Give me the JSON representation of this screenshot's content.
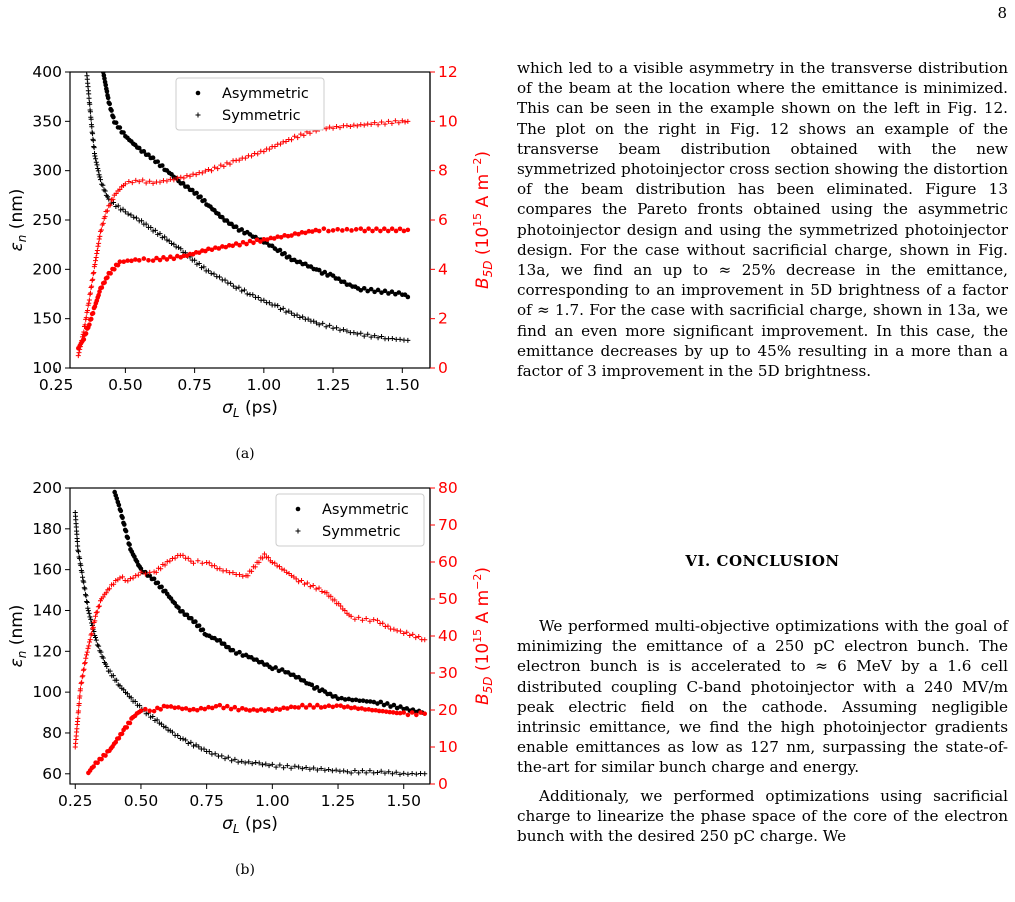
{
  "page_number": "8",
  "figures": [
    {
      "caption": "(a)",
      "xlabel": "σ_L (ps)",
      "ylabel_left": "ε_n (nm)",
      "ylabel_right": "B_5D (10^15 A m^-2)",
      "legend": [
        "Asymmetric",
        "Symmetric"
      ]
    },
    {
      "caption": "(b)",
      "xlabel": "σ_L (ps)",
      "ylabel_left": "ε_n (nm)",
      "ylabel_right": "B_5D (10^15 A m^-2)",
      "legend": [
        "Asymmetric",
        "Symmetric"
      ]
    }
  ],
  "chart_data": [
    {
      "type": "scatter",
      "panel": "(a)",
      "xlabel": "σL (ps)",
      "ylabel": "εn (nm)",
      "y2label": "B5D (10^15 A m^-2)",
      "xlim": [
        0.3,
        1.6
      ],
      "ylim": [
        100,
        400
      ],
      "y2lim": [
        0,
        12
      ],
      "xticks": [
        "0.25",
        "0.50",
        "0.75",
        "1.00",
        "1.25",
        "1.50"
      ],
      "yticks": [
        "100",
        "150",
        "200",
        "250",
        "300",
        "350",
        "400"
      ],
      "y2ticks": [
        "0",
        "2",
        "4",
        "6",
        "8",
        "10",
        "12"
      ],
      "colors": {
        "emittance": "#000000",
        "brightness": "#ff0000"
      },
      "legend_position": "top-center",
      "series": [
        {
          "name": "Asymmetric",
          "axis": "left",
          "marker": "dot",
          "color": "#000000",
          "points": [
            [
              0.42,
              400
            ],
            [
              0.44,
              370
            ],
            [
              0.46,
              350
            ],
            [
              0.5,
              335
            ],
            [
              0.55,
              322
            ],
            [
              0.6,
              312
            ],
            [
              0.65,
              300
            ],
            [
              0.7,
              288
            ],
            [
              0.75,
              278
            ],
            [
              0.8,
              265
            ],
            [
              0.85,
              252
            ],
            [
              0.9,
              242
            ],
            [
              0.95,
              235
            ],
            [
              1.0,
              228
            ],
            [
              1.05,
              220
            ],
            [
              1.1,
              210
            ],
            [
              1.15,
              205
            ],
            [
              1.2,
              198
            ],
            [
              1.25,
              193
            ],
            [
              1.3,
              185
            ],
            [
              1.35,
              180
            ],
            [
              1.5,
              175
            ],
            [
              1.52,
              172
            ]
          ]
        },
        {
          "name": "Symmetric",
          "axis": "left",
          "marker": "plus",
          "color": "#000000",
          "points": [
            [
              0.36,
              400
            ],
            [
              0.37,
              370
            ],
            [
              0.38,
              340
            ],
            [
              0.39,
              315
            ],
            [
              0.41,
              290
            ],
            [
              0.44,
              270
            ],
            [
              0.5,
              258
            ],
            [
              0.55,
              250
            ],
            [
              0.6,
              240
            ],
            [
              0.65,
              230
            ],
            [
              0.7,
              220
            ],
            [
              0.75,
              208
            ],
            [
              0.8,
              198
            ],
            [
              0.85,
              190
            ],
            [
              0.9,
              182
            ],
            [
              0.95,
              175
            ],
            [
              1.0,
              168
            ],
            [
              1.05,
              162
            ],
            [
              1.1,
              155
            ],
            [
              1.15,
              150
            ],
            [
              1.2,
              145
            ],
            [
              1.25,
              141
            ],
            [
              1.3,
              137
            ],
            [
              1.35,
              134
            ],
            [
              1.4,
              132
            ],
            [
              1.45,
              130
            ],
            [
              1.52,
              128
            ]
          ]
        },
        {
          "name": "Asymmetric",
          "axis": "right",
          "marker": "dot",
          "color": "#ff0000",
          "points": [
            [
              0.33,
              0.8
            ],
            [
              0.35,
              1.2
            ],
            [
              0.37,
              1.8
            ],
            [
              0.39,
              2.5
            ],
            [
              0.41,
              3.2
            ],
            [
              0.44,
              3.8
            ],
            [
              0.48,
              4.3
            ],
            [
              0.55,
              4.4
            ],
            [
              0.6,
              4.4
            ],
            [
              0.7,
              4.5
            ],
            [
              0.8,
              4.8
            ],
            [
              0.9,
              5.0
            ],
            [
              1.0,
              5.2
            ],
            [
              1.1,
              5.4
            ],
            [
              1.2,
              5.6
            ],
            [
              1.25,
              5.6
            ],
            [
              1.3,
              5.6
            ],
            [
              1.35,
              5.6
            ],
            [
              1.52,
              5.6
            ]
          ]
        },
        {
          "name": "Symmetric",
          "axis": "right",
          "marker": "plus",
          "color": "#ff0000",
          "points": [
            [
              0.33,
              0.5
            ],
            [
              0.35,
              1.5
            ],
            [
              0.37,
              2.8
            ],
            [
              0.39,
              4.2
            ],
            [
              0.41,
              5.5
            ],
            [
              0.43,
              6.3
            ],
            [
              0.46,
              7.0
            ],
            [
              0.5,
              7.5
            ],
            [
              0.55,
              7.6
            ],
            [
              0.6,
              7.5
            ],
            [
              0.7,
              7.7
            ],
            [
              0.8,
              8.0
            ],
            [
              0.9,
              8.4
            ],
            [
              1.0,
              8.8
            ],
            [
              1.1,
              9.3
            ],
            [
              1.2,
              9.7
            ],
            [
              1.3,
              9.8
            ],
            [
              1.4,
              9.9
            ],
            [
              1.5,
              10.0
            ],
            [
              1.52,
              10.0
            ]
          ]
        }
      ]
    },
    {
      "type": "scatter",
      "panel": "(b)",
      "xlabel": "σL (ps)",
      "ylabel": "εn (nm)",
      "y2label": "B5D (10^15 A m^-2)",
      "xlim": [
        0.23,
        1.6
      ],
      "ylim": [
        55,
        200
      ],
      "y2lim": [
        0,
        80
      ],
      "xticks": [
        "0.25",
        "0.50",
        "0.75",
        "1.00",
        "1.25",
        "1.50"
      ],
      "yticks": [
        "60",
        "80",
        "100",
        "120",
        "140",
        "160",
        "180",
        "200"
      ],
      "y2ticks": [
        "0",
        "10",
        "20",
        "30",
        "40",
        "50",
        "60",
        "70",
        "80"
      ],
      "colors": {
        "emittance": "#000000",
        "brightness": "#ff0000"
      },
      "legend_position": "top-right",
      "series": [
        {
          "name": "Asymmetric",
          "axis": "left",
          "marker": "dot",
          "color": "#000000",
          "points": [
            [
              0.4,
              198
            ],
            [
              0.42,
              190
            ],
            [
              0.44,
              180
            ],
            [
              0.46,
              170
            ],
            [
              0.5,
              160
            ],
            [
              0.55,
              155
            ],
            [
              0.6,
              148
            ],
            [
              0.65,
              140
            ],
            [
              0.7,
              135
            ],
            [
              0.75,
              128
            ],
            [
              0.8,
              125
            ],
            [
              0.85,
              120
            ],
            [
              0.9,
              118
            ],
            [
              0.95,
              115
            ],
            [
              1.0,
              112
            ],
            [
              1.05,
              110
            ],
            [
              1.1,
              107
            ],
            [
              1.15,
              103
            ],
            [
              1.2,
              100
            ],
            [
              1.25,
              97
            ],
            [
              1.4,
              95
            ],
            [
              1.5,
              92
            ],
            [
              1.57,
              90
            ]
          ]
        },
        {
          "name": "Symmetric",
          "axis": "left",
          "marker": "plus",
          "color": "#000000",
          "points": [
            [
              0.25,
              188
            ],
            [
              0.26,
              170
            ],
            [
              0.28,
              155
            ],
            [
              0.3,
              140
            ],
            [
              0.33,
              125
            ],
            [
              0.37,
              112
            ],
            [
              0.42,
              103
            ],
            [
              0.47,
              96
            ],
            [
              0.52,
              90
            ],
            [
              0.57,
              85
            ],
            [
              0.62,
              80
            ],
            [
              0.67,
              76
            ],
            [
              0.72,
              73
            ],
            [
              0.77,
              70
            ],
            [
              0.82,
              68
            ],
            [
              0.87,
              66
            ],
            [
              0.95,
              65
            ],
            [
              1.0,
              64
            ],
            [
              1.1,
              63
            ],
            [
              1.2,
              62
            ],
            [
              1.3,
              61
            ],
            [
              1.4,
              61
            ],
            [
              1.5,
              60
            ],
            [
              1.58,
              60
            ]
          ]
        },
        {
          "name": "Asymmetric",
          "axis": "right",
          "marker": "dot",
          "color": "#ff0000",
          "points": [
            [
              0.3,
              3
            ],
            [
              0.32,
              5
            ],
            [
              0.35,
              7
            ],
            [
              0.38,
              9
            ],
            [
              0.41,
              12
            ],
            [
              0.44,
              15
            ],
            [
              0.47,
              18
            ],
            [
              0.5,
              20
            ],
            [
              0.55,
              20
            ],
            [
              0.6,
              21
            ],
            [
              0.7,
              20
            ],
            [
              0.8,
              21
            ],
            [
              0.9,
              20
            ],
            [
              1.0,
              20
            ],
            [
              1.1,
              21
            ],
            [
              1.2,
              21
            ],
            [
              1.26,
              21
            ],
            [
              1.5,
              19
            ],
            [
              1.58,
              19
            ]
          ]
        },
        {
          "name": "Symmetric",
          "axis": "right",
          "marker": "plus",
          "color": "#ff0000",
          "points": [
            [
              0.25,
              10
            ],
            [
              0.26,
              18
            ],
            [
              0.27,
              26
            ],
            [
              0.29,
              34
            ],
            [
              0.31,
              40
            ],
            [
              0.33,
              46
            ],
            [
              0.35,
              50
            ],
            [
              0.38,
              53
            ],
            [
              0.42,
              56
            ],
            [
              0.45,
              55
            ],
            [
              0.5,
              57
            ],
            [
              0.55,
              57
            ],
            [
              0.6,
              60
            ],
            [
              0.65,
              62
            ],
            [
              0.7,
              60
            ],
            [
              0.75,
              60
            ],
            [
              0.8,
              58
            ],
            [
              0.9,
              56
            ],
            [
              0.97,
              62
            ],
            [
              1.0,
              60
            ],
            [
              1.1,
              55
            ],
            [
              1.2,
              52
            ],
            [
              1.26,
              48
            ],
            [
              1.3,
              45
            ],
            [
              1.4,
              44
            ],
            [
              1.45,
              42
            ],
            [
              1.5,
              41
            ],
            [
              1.58,
              39
            ]
          ]
        }
      ]
    }
  ],
  "text": {
    "para1": "which led to a visible asymmetry in the transverse distribution of the beam at the location where the emittance is minimized.  This can be seen in the example shown on the left in Fig. 12. The plot on the right in Fig. 12 shows an example of the transverse beam distribution obtained with the new symmetrized photoinjector cross section showing the distortion of the beam distribution has been eliminated.  Figure 13 compares the Pareto fronts obtained using the asymmetric photoinjector design and using the symmetrized photoinjector design. For the case without sacrificial charge, shown in Fig. 13a, we find an up to ≈ 25% decrease in the emittance, corresponding to an improvement in 5D brightness of a factor of ≈ 1.7. For the case with sacrificial charge, shown in 13a, we find an even more significant improvement. In this case, the emittance decreases by up to 45% resulting in a more than a factor of 3 improvement in the 5D brightness.",
    "heading": "VI.    CONCLUSION",
    "para2": "We performed multi-objective optimizations with the goal of minimizing the emittance of a 250 pC electron bunch. The electron bunch is is accelerated to ≈ 6 MeV by a 1.6 cell distributed coupling C-band photoinjector with a 240 MV/m peak electric field on the cathode. Assuming negligible intrinsic emittance, we find the high photoinjector gradients enable emittances as low as 127 nm, surpassing the state-of-the-art for similar bunch charge and energy.",
    "para3": "Additionaly, we performed optimizations using sacrificial charge to linearize the phase space of the core of the electron bunch with the desired 250 pC charge. We"
  }
}
